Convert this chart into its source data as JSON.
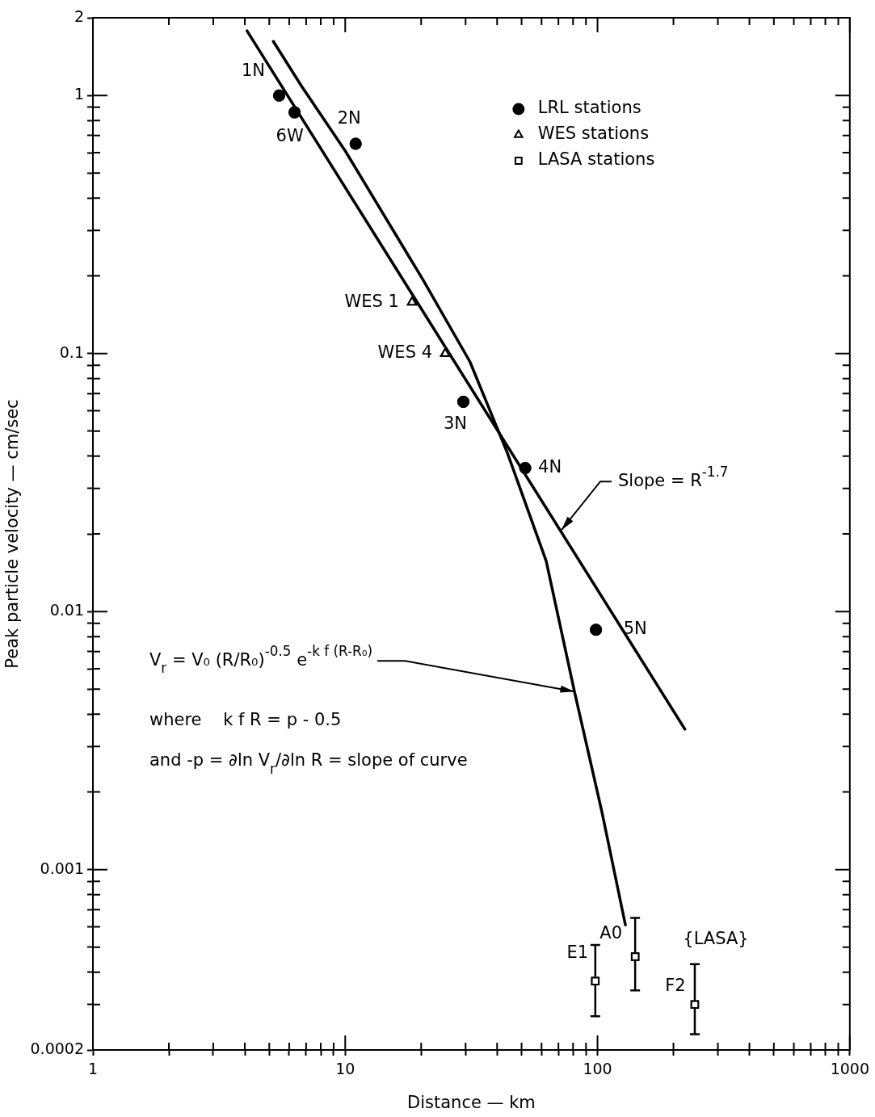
{
  "chart_data": {
    "type": "scatter",
    "xlabel": "Distance — km",
    "ylabel": "Peak particle velocity — cm/sec",
    "log": "xy",
    "grid": false,
    "legend": "top right",
    "xlim": [
      1,
      1000
    ],
    "ylim": [
      0.0002,
      2
    ],
    "xticks": [
      1,
      {
        "value": 2,
        "label": null
      },
      {
        "value": 3,
        "label": null
      },
      {
        "value": 4,
        "label": null
      },
      {
        "value": 5,
        "label": null
      },
      {
        "value": 6,
        "label": null
      },
      {
        "value": 7,
        "label": null
      },
      {
        "value": 8,
        "label": null
      },
      {
        "value": 9,
        "label": null
      },
      10,
      {
        "value": 20,
        "label": null
      },
      {
        "value": 30,
        "label": null
      },
      {
        "value": 40,
        "label": null
      },
      {
        "value": 50,
        "label": null
      },
      {
        "value": 60,
        "label": null
      },
      {
        "value": 70,
        "label": null
      },
      {
        "value": 80,
        "label": null
      },
      {
        "value": 90,
        "label": null
      },
      100,
      {
        "value": 200,
        "label": null
      },
      {
        "value": 300,
        "label": null
      },
      {
        "value": 400,
        "label": null
      },
      {
        "value": 500,
        "label": null
      },
      {
        "value": 600,
        "label": null
      },
      {
        "value": 700,
        "label": null
      },
      {
        "value": 800,
        "label": null
      },
      {
        "value": 900,
        "label": null
      },
      1000
    ],
    "yticks": [
      {
        "value": 0.0002,
        "label": "0.0002"
      },
      {
        "value": 0.0003,
        "label": null
      },
      {
        "value": 0.0004,
        "label": null
      },
      {
        "value": 0.0005,
        "label": null
      },
      {
        "value": 0.0006,
        "label": null
      },
      {
        "value": 0.0007,
        "label": null
      },
      {
        "value": 0.0008,
        "label": null
      },
      {
        "value": 0.0009,
        "label": null
      },
      0.001,
      {
        "value": 0.002,
        "label": null
      },
      {
        "value": 0.003,
        "label": null
      },
      {
        "value": 0.004,
        "label": null
      },
      {
        "value": 0.005,
        "label": null
      },
      {
        "value": 0.006,
        "label": null
      },
      {
        "value": 0.007,
        "label": null
      },
      {
        "value": 0.008,
        "label": null
      },
      {
        "value": 0.009,
        "label": null
      },
      0.01,
      {
        "value": 0.02,
        "label": null
      },
      {
        "value": 0.03,
        "label": null
      },
      {
        "value": 0.04,
        "label": null
      },
      {
        "value": 0.05,
        "label": null
      },
      {
        "value": 0.06,
        "label": null
      },
      {
        "value": 0.07,
        "label": null
      },
      {
        "value": 0.08,
        "label": null
      },
      {
        "value": 0.09,
        "label": null
      },
      0.1,
      {
        "value": 0.2,
        "label": null
      },
      {
        "value": 0.3,
        "label": null
      },
      {
        "value": 0.4,
        "label": null
      },
      {
        "value": 0.5,
        "label": null
      },
      {
        "value": 0.6,
        "label": null
      },
      {
        "value": 0.7,
        "label": null
      },
      {
        "value": 0.8,
        "label": null
      },
      {
        "value": 0.9,
        "label": null
      },
      1,
      2
    ],
    "series": [
      {
        "name": "LRL stations",
        "color": "#000000",
        "marker": "circle",
        "x": [
          5.47,
          6.3,
          11,
          29.4,
          51.7,
          98.6
        ],
        "values": [
          1.0,
          0.86,
          0.65,
          0.065,
          0.036,
          0.0085
        ]
      },
      {
        "name": "WES stations",
        "color": "#000000",
        "marker": "triangle",
        "x": [
          18.4,
          24.9
        ],
        "values": [
          0.158,
          0.1
        ]
      },
      {
        "name": "LASA stations",
        "color": "#000000",
        "marker": "square",
        "x": [
          98,
          141,
          243
        ],
        "values": [
          0.00037,
          0.00046,
          0.0003
        ],
        "errors": [
          [
            0.00027,
            0.00051
          ],
          [
            0.00034,
            0.00065
          ],
          [
            0.00023,
            0.00043
          ]
        ]
      },
      {
        "type": "line",
        "color": "#000000",
        "x": [
          4.08,
          222
        ],
        "values": [
          1.78,
          0.0035
        ]
      },
      {
        "type": "line",
        "color": "#000000",
        "x": [
          5.19,
          6.7,
          10,
          20.4,
          31.2,
          44,
          62.6,
          81,
          104,
          129
        ],
        "values": [
          1.62,
          1.09,
          0.61,
          0.192,
          0.093,
          0.041,
          0.0157,
          0.0049,
          0.00168,
          0.00061
        ]
      }
    ],
    "annotations": [
      {
        "text": "1N",
        "x": 5.47,
        "y": 1.0
      },
      {
        "text": "6W",
        "x": 6.3,
        "y": 0.86
      },
      {
        "text": "2N",
        "x": 11,
        "y": 0.65
      },
      {
        "text": "WES 1",
        "x": 18.4,
        "y": 0.158
      },
      {
        "text": "WES 4",
        "x": 24.9,
        "y": 0.1
      },
      {
        "text": "3N",
        "x": 29.4,
        "y": 0.065
      },
      {
        "text": "4N",
        "x": 51.7,
        "y": 0.036
      },
      {
        "text": "5N",
        "x": 98.6,
        "y": 0.0085
      },
      {
        "text": "E1",
        "x": 98,
        "y": 0.00037
      },
      {
        "text": "A0",
        "x": 141,
        "y": 0.00046
      },
      {
        "text": "F2",
        "x": 243,
        "y": 0.0003
      },
      "{LASA}",
      {
        "text": "Slope = R$^{-1.7}$",
        "x": 72,
        "y": 0.0207
      },
      {
        "text": "V$_{r}$ = V₀ (R/R₀)$^{-0.5}$ e$^{-k f (R-R₀)}$",
        "x": 81,
        "y": 0.0049
      },
      "where    k f R = p - 0.5",
      "and -p = ∂ln V$_{r}$/∂ln R = slope of curve"
    ]
  }
}
